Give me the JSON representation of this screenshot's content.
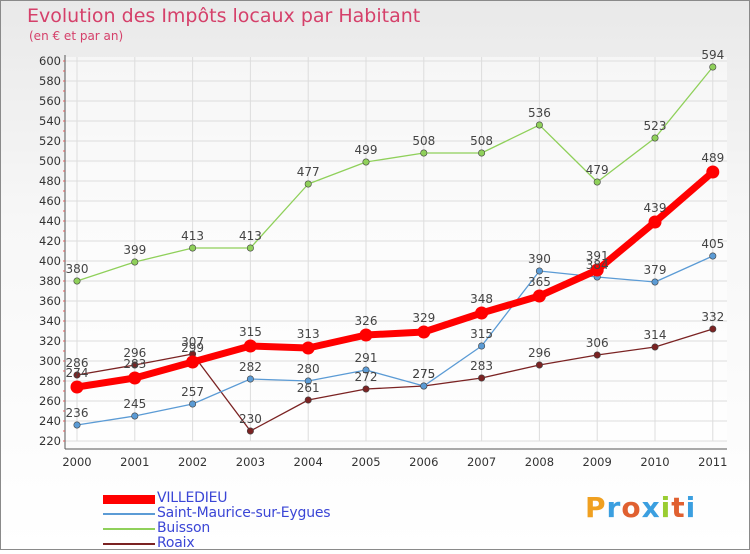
{
  "title": "Evolution des Impôts locaux par Habitant",
  "subtitle": "(en € et par an)",
  "chart_data": {
    "type": "line",
    "x": [
      "2000",
      "2001",
      "2002",
      "2003",
      "2004",
      "2005",
      "2006",
      "2007",
      "2008",
      "2009",
      "2010",
      "2011"
    ],
    "ylim": [
      220,
      600
    ],
    "y_ticks": [
      220,
      240,
      260,
      280,
      300,
      320,
      340,
      360,
      380,
      400,
      420,
      440,
      460,
      480,
      500,
      520,
      540,
      560,
      580,
      600
    ],
    "grid": true,
    "legend_position": "bottom-left",
    "series": [
      {
        "name": "VILLEDIEU",
        "color": "#ff0000",
        "values": [
          274,
          283,
          299,
          315,
          313,
          326,
          329,
          348,
          365,
          391,
          439,
          489
        ]
      },
      {
        "name": "Saint-Maurice-sur-Eygues",
        "color": "#5b9bd5",
        "values": [
          236,
          245,
          257,
          282,
          280,
          291,
          275,
          315,
          390,
          384,
          379,
          405
        ]
      },
      {
        "name": "Buisson",
        "color": "#8fd05a",
        "values": [
          380,
          399,
          413,
          413,
          477,
          499,
          508,
          508,
          536,
          479,
          523,
          594
        ]
      },
      {
        "name": "Roaix",
        "color": "#7b2323",
        "values": [
          286,
          296,
          307,
          230,
          261,
          272,
          275,
          283,
          296,
          306,
          314,
          332
        ]
      }
    ]
  },
  "logo": {
    "text": "Proxiti",
    "colors": [
      "#f0a020",
      "#3b9fe0",
      "#e06030",
      "#3b9fe0",
      "#9acd32",
      "#e06030",
      "#3b9fe0"
    ]
  }
}
